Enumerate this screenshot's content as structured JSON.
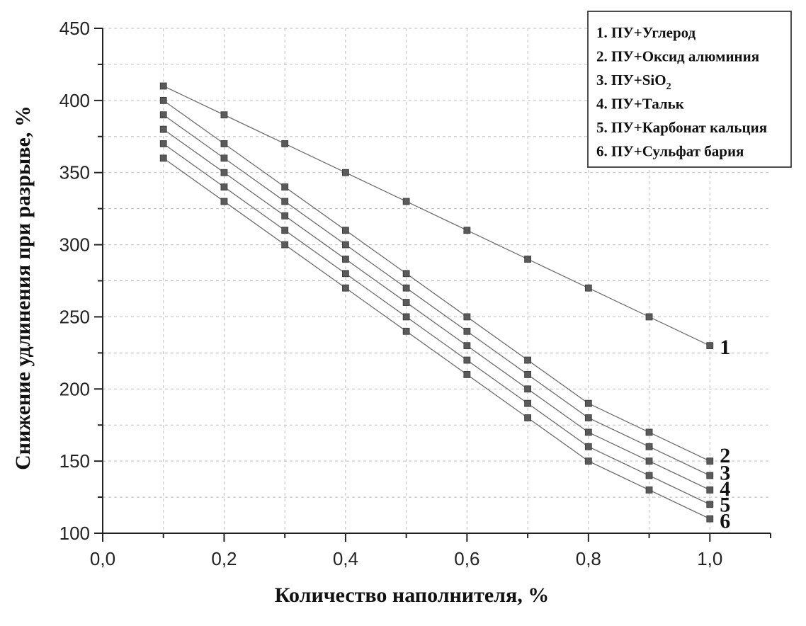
{
  "chart_data": {
    "type": "line",
    "xlabel": "Количество наполнителя, %",
    "ylabel": "Снижение удлинения при разрыве, %",
    "xlim": [
      0,
      1.1
    ],
    "ylim": [
      100,
      450
    ],
    "x_ticks": [
      "0,0",
      "0,2",
      "0,4",
      "0,6",
      "0,8",
      "1,0"
    ],
    "x_tick_values": [
      0,
      0.2,
      0.4,
      0.6,
      0.8,
      1.0
    ],
    "y_ticks": [
      "100",
      "150",
      "200",
      "250",
      "300",
      "350",
      "400",
      "450"
    ],
    "y_tick_values": [
      100,
      150,
      200,
      250,
      300,
      350,
      400,
      450
    ],
    "grid": true,
    "legend_position": "top-right",
    "x": [
      0.1,
      0.2,
      0.3,
      0.4,
      0.5,
      0.6,
      0.7,
      0.8,
      0.9,
      1.0
    ],
    "series": [
      {
        "name": "ПУ+Углерод",
        "legend_label": "1.  ПУ+Углерод",
        "end_label": "1",
        "values": [
          410,
          390,
          370,
          350,
          330,
          310,
          290,
          270,
          250,
          230
        ]
      },
      {
        "name": "ПУ+Оксид алюминия",
        "legend_label": "2.  ПУ+Оксид алюминия",
        "end_label": "2",
        "values": [
          400,
          370,
          340,
          310,
          280,
          250,
          220,
          190,
          170,
          150
        ]
      },
      {
        "name": "ПУ+SiO2",
        "legend_label": "3.  ПУ+SiO",
        "legend_subscript": "2",
        "end_label": "3",
        "values": [
          390,
          360,
          330,
          300,
          270,
          240,
          210,
          180,
          160,
          140
        ]
      },
      {
        "name": "ПУ+Тальк",
        "legend_label": "4.  ПУ+Тальк",
        "end_label": "4",
        "values": [
          380,
          350,
          320,
          290,
          260,
          230,
          200,
          170,
          150,
          130
        ]
      },
      {
        "name": "ПУ+Карбонат кальция",
        "legend_label": "5.  ПУ+Карбонат кальция",
        "end_label": "5",
        "values": [
          370,
          340,
          310,
          280,
          250,
          220,
          190,
          160,
          140,
          120
        ]
      },
      {
        "name": "ПУ+Сульфат бария",
        "legend_label": "6.  ПУ+Сульфат бария",
        "end_label": "6",
        "values": [
          360,
          330,
          300,
          270,
          240,
          210,
          180,
          150,
          130,
          110
        ]
      }
    ],
    "colors": {
      "line": "#6e6e6e",
      "marker": "#5a5a5a",
      "grid": "#bdbdbd",
      "axis": "#222222"
    }
  }
}
